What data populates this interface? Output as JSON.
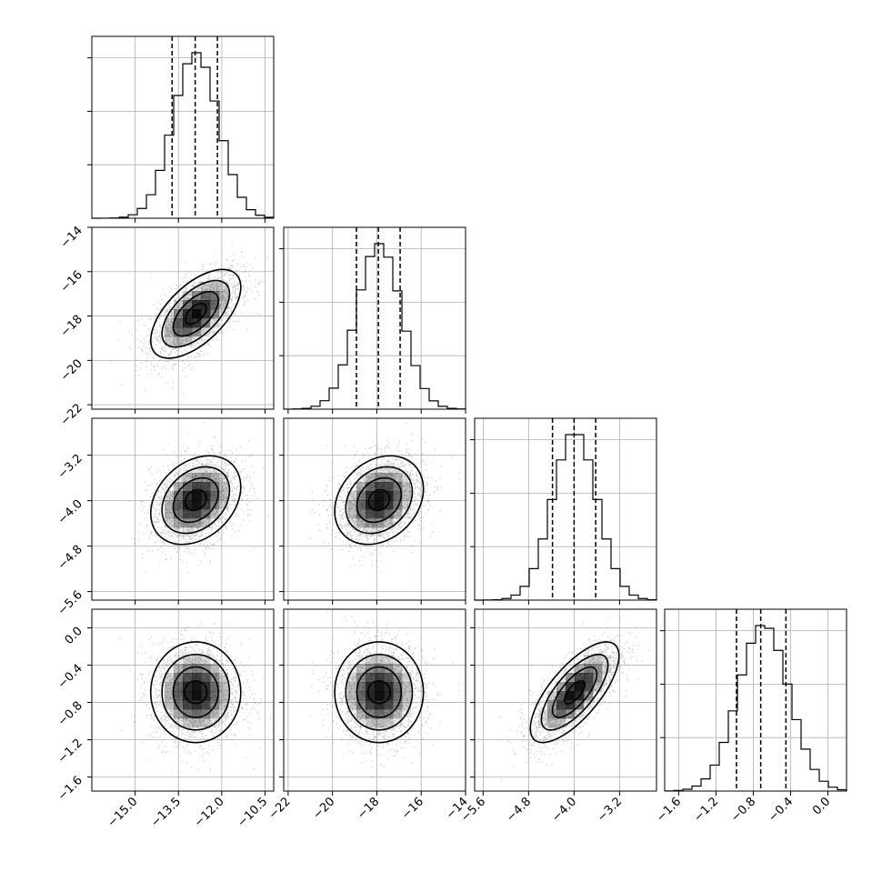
{
  "chart_data": {
    "type": "corner",
    "parameters": [
      {
        "range": [
          -16.5,
          -10.2
        ],
        "ticks": [
          -15.0,
          -13.5,
          -12.0,
          -10.5
        ],
        "tick_labels": [
          "−15.0",
          "−13.5",
          "−12.0",
          "−10.5"
        ],
        "mean": -12.9,
        "sigma": 0.78,
        "quantiles": [
          -13.72,
          -12.92,
          -12.15
        ]
      },
      {
        "range": [
          -22.2,
          -14.0
        ],
        "ticks": [
          -22,
          -20,
          -18,
          -16,
          -14
        ],
        "tick_labels": [
          "−22",
          "−20",
          "−18",
          "−16",
          "−14"
        ],
        "mean": -17.9,
        "sigma": 1.0,
        "quantiles": [
          -18.92,
          -17.93,
          -16.95
        ]
      },
      {
        "range": [
          -5.75,
          -2.55
        ],
        "ticks": [
          -5.6,
          -4.8,
          -4.0,
          -3.2
        ],
        "tick_labels": [
          "−5.6",
          "−4.8",
          "−4.0",
          "−3.2"
        ],
        "mean": -3.99,
        "sigma": 0.39,
        "quantiles": [
          -4.38,
          -4.0,
          -3.62
        ]
      },
      {
        "range": [
          -1.75,
          0.2
        ],
        "ticks": [
          -1.6,
          -1.2,
          -0.8,
          -0.4,
          0.0
        ],
        "tick_labels": [
          "−1.6",
          "−1.2",
          "−0.8",
          "−0.4",
          "0.0"
        ],
        "mean": -0.69,
        "sigma": 0.27,
        "quantiles": [
          -0.98,
          -0.72,
          -0.45
        ]
      }
    ],
    "correlations": [
      {
        "pair": [
          0,
          1
        ],
        "rho": 0.6
      },
      {
        "pair": [
          0,
          2
        ],
        "rho": 0.3
      },
      {
        "pair": [
          1,
          2
        ],
        "rho": 0.25
      },
      {
        "pair": [
          0,
          3
        ],
        "rho": 0.0
      },
      {
        "pair": [
          1,
          3
        ],
        "rho": 0.0
      },
      {
        "pair": [
          2,
          3
        ],
        "rho": 0.72
      }
    ],
    "histogram_bins": 20,
    "contour_levels_sigma": [
      0.5,
      1.0,
      1.5,
      2.0
    ],
    "grid": true,
    "colors": {
      "line": "#000000",
      "grid": "#b0b0b0",
      "points": "#9a9a9a",
      "density": "#000000"
    }
  }
}
